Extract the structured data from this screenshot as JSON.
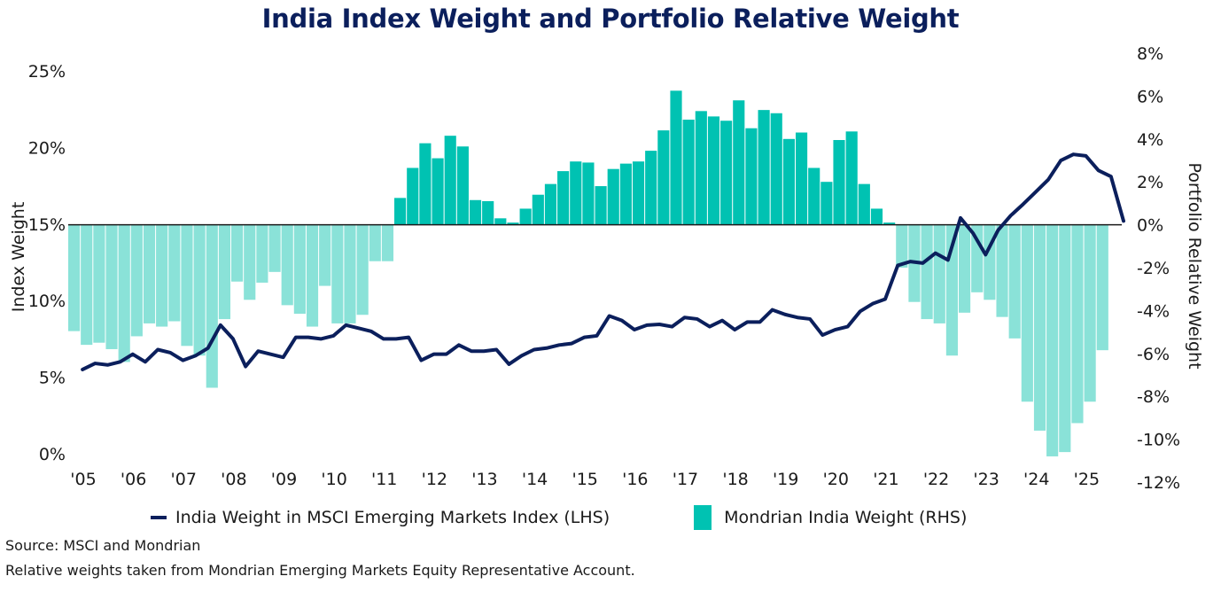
{
  "chart_data": {
    "type": "bar+line",
    "title": "India Index Weight and Portfolio Relative Weight",
    "xlabel": "",
    "ylabel_left": "Index Weight",
    "ylabel_right": "Portfolio Relative Weight",
    "ylim_left": [
      0,
      25
    ],
    "ylim_right": [
      -12,
      8
    ],
    "yticks_left": [
      "0%",
      "5%",
      "10%",
      "15%",
      "20%",
      "25%"
    ],
    "yticks_left_values": [
      0,
      5,
      10,
      15,
      20,
      25
    ],
    "yticks_right": [
      "-12%",
      "-10%",
      "-8%",
      "-6%",
      "-4%",
      "-2%",
      "0%",
      "2%",
      "4%",
      "6%",
      "8%"
    ],
    "yticks_right_values": [
      -12,
      -10,
      -8,
      -6,
      -4,
      -2,
      0,
      2,
      4,
      6,
      8
    ],
    "x_ticks": [
      "'05",
      "'06",
      "'07",
      "'08",
      "'09",
      "'10",
      "'11",
      "'12",
      "'13",
      "'14",
      "'15",
      "'16",
      "'17",
      "'18",
      "'19",
      "'20",
      "'21",
      "'22",
      "'23",
      "'24",
      "'25"
    ],
    "x_start_year": 2005,
    "x_end_year": 2026,
    "grid": false,
    "legend_position": "bottom",
    "colors": {
      "line": "#0b1f5c",
      "bar_positive": "#00c2b2",
      "bar_negative": "#8ae2d8",
      "title": "#0b1f5c"
    },
    "series": [
      {
        "name": "India Weight in MSCI Emerging Markets Index (LHS)",
        "type": "line",
        "axis": "left",
        "frequency": "quarterly",
        "start": "2005 Q2",
        "values": [
          5.5,
          5.9,
          5.8,
          6.0,
          6.5,
          6.0,
          6.8,
          6.6,
          6.1,
          6.4,
          6.9,
          8.4,
          7.5,
          5.7,
          6.7,
          6.5,
          6.3,
          7.6,
          7.6,
          7.5,
          7.7,
          8.4,
          8.2,
          8.0,
          7.5,
          7.5,
          7.6,
          6.1,
          6.5,
          6.5,
          7.1,
          6.7,
          6.7,
          6.8,
          5.85,
          6.4,
          6.8,
          6.9,
          7.1,
          7.2,
          7.6,
          7.7,
          9.0,
          8.7,
          8.1,
          8.4,
          8.45,
          8.3,
          8.9,
          8.8,
          8.3,
          8.7,
          8.1,
          8.6,
          8.6,
          9.4,
          9.1,
          8.9,
          8.8,
          7.75,
          8.1,
          8.3,
          9.3,
          9.8,
          10.1,
          12.3,
          12.55,
          12.45,
          13.1,
          12.65,
          15.4,
          14.4,
          13.0,
          14.6,
          15.55,
          16.3,
          17.1,
          17.9,
          19.15,
          19.55,
          19.45,
          18.5,
          18.1,
          15.2
        ]
      },
      {
        "name": "Mondrian India Weight (RHS)",
        "type": "bar",
        "axis": "right",
        "frequency": "quarterly",
        "start": "2005 Q1",
        "values": [
          -4.96,
          -5.6,
          -5.5,
          -5.8,
          -6.4,
          -5.2,
          -4.6,
          -4.75,
          -4.5,
          -5.65,
          -6.1,
          -7.6,
          -4.4,
          -2.65,
          -3.5,
          -2.7,
          -2.2,
          -3.75,
          -4.15,
          -4.75,
          -2.85,
          -4.6,
          -4.6,
          -4.2,
          -1.7,
          -1.7,
          1.25,
          2.65,
          3.8,
          3.1,
          4.15,
          3.65,
          1.15,
          1.1,
          0.3,
          0.1,
          0.75,
          1.4,
          1.9,
          2.5,
          2.95,
          2.9,
          1.8,
          2.6,
          2.85,
          2.95,
          3.45,
          4.4,
          6.25,
          4.9,
          5.3,
          5.05,
          4.85,
          5.8,
          4.5,
          5.35,
          5.2,
          4.0,
          4.3,
          2.65,
          2.0,
          3.95,
          4.35,
          1.9,
          0.75,
          0.1,
          -2.0,
          -3.6,
          -4.4,
          -4.6,
          -6.1,
          -4.1,
          -3.15,
          -3.5,
          -4.3,
          -5.3,
          -8.25,
          -9.6,
          -10.8,
          -10.6,
          -9.25,
          -8.25,
          -5.85
        ]
      }
    ]
  },
  "legend": {
    "line_label": "India Weight in MSCI Emerging Markets Index (LHS)",
    "bar_label": "Mondrian India Weight (RHS)"
  },
  "footer": {
    "source": "Source: MSCI and Mondrian",
    "note": "Relative weights taken from Mondrian Emerging Markets Equity Representative Account."
  }
}
